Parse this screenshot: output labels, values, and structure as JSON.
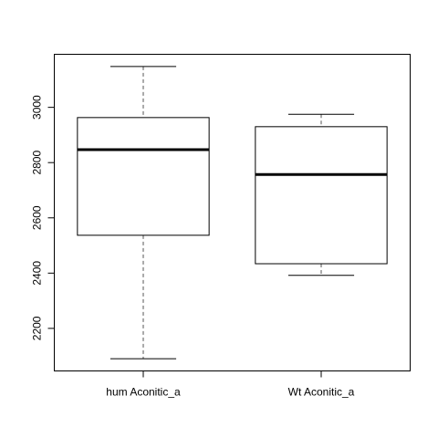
{
  "chart_data": {
    "type": "boxplot",
    "categories": [
      "hum Aconitic_a",
      "Wt Aconitic_a"
    ],
    "boxes": [
      {
        "category": "hum Aconitic_a",
        "whisker_low": 2090,
        "q1": 2537,
        "median": 2847,
        "q3": 2963,
        "whisker_high": 3148
      },
      {
        "category": "Wt Aconitic_a",
        "whisker_low": 2392,
        "q1": 2434,
        "median": 2757,
        "q3": 2930,
        "whisker_high": 2975
      }
    ],
    "y_ticks": [
      2200,
      2400,
      2600,
      2800,
      3000
    ],
    "y_tick_labels": [
      "2200",
      "2400",
      "2600",
      "2800",
      "3000"
    ],
    "ylim": [
      2046,
      3192
    ],
    "title": "",
    "xlabel": "",
    "ylabel": "",
    "grid": false,
    "colors": {
      "box_fill": "#ffffff",
      "stroke": "#000000",
      "whisker": "#555555"
    }
  }
}
